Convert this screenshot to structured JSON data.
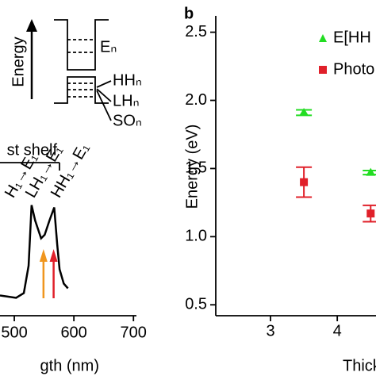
{
  "chart_data": [
    {
      "type": "line",
      "x_label": "gth (nm)",
      "x": [
        476,
        490,
        503,
        516,
        524,
        529,
        535,
        545,
        551,
        559,
        567,
        572,
        576,
        583,
        590
      ],
      "series": [
        {
          "color": "#000000",
          "values": [
            0.17,
            0.16,
            0.15,
            0.19,
            0.42,
            0.93,
            0.8,
            0.65,
            0.68,
            0.8,
            0.91,
            0.6,
            0.39,
            0.27,
            0.23
          ]
        }
      ],
      "xlim": [
        476,
        705
      ],
      "xticks": [
        500,
        600,
        700
      ],
      "ylim": [
        0,
        1
      ],
      "arrows": [
        {
          "x": 549,
          "color": "#f0961e"
        },
        {
          "x": 566,
          "color": "#e0202a"
        }
      ],
      "annotations": {
        "transition_0": "H₁→E₁",
        "transition_1": "LH₁→E₁",
        "transition_2": "HH₁→E₁",
        "shelf": "st shelf",
        "energy_axis": "Energy",
        "level_e": "Eₙ",
        "level_hh": "HHₙ",
        "level_lh": "LHₙ",
        "level_so": "SOₙ"
      }
    },
    {
      "type": "scatter",
      "panel_label": "b",
      "y_label": "Energy (eV)",
      "x_label": "Thick",
      "xlim": [
        2.18,
        4.58
      ],
      "xticks": [
        3,
        4
      ],
      "ylim": [
        0.42,
        2.62
      ],
      "yticks": [
        2.5,
        {
          "value": 2.0,
          "label": "2.0"
        },
        1.5,
        {
          "value": 1.0,
          "label": "1.0"
        },
        0.5
      ],
      "series": [
        {
          "name": "E[HH",
          "color": "#22dd22",
          "marker": "triangle",
          "x": [
            3.5,
            4.5
          ],
          "values": [
            1.91,
            1.47
          ],
          "errors": [
            0.02,
            0.015
          ]
        },
        {
          "name": "Photo",
          "color": "#e0202a",
          "marker": "square",
          "x": [
            3.5,
            4.5
          ],
          "values": [
            1.4,
            1.17
          ],
          "errors": [
            0.11,
            0.06
          ]
        }
      ]
    }
  ]
}
